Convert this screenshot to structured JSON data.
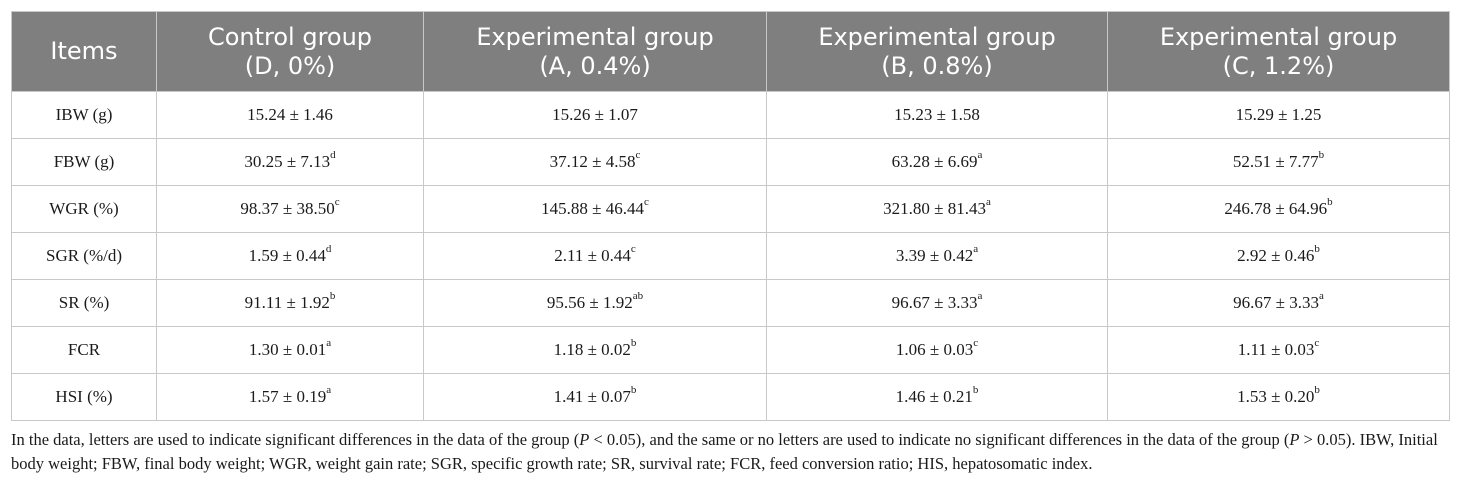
{
  "table": {
    "headers": [
      {
        "line1": "Items",
        "line2": ""
      },
      {
        "line1": "Control group",
        "line2": "(D, 0%)"
      },
      {
        "line1": "Experimental group",
        "line2": "(A, 0.4%)"
      },
      {
        "line1": "Experimental group",
        "line2": "(B, 0.8%)"
      },
      {
        "line1": "Experimental group",
        "line2": "(C, 1.2%)"
      }
    ],
    "rows": [
      {
        "item": "IBW (g)",
        "cells": [
          {
            "value": "15.24 ± 1.46",
            "sup": ""
          },
          {
            "value": "15.26 ± 1.07",
            "sup": ""
          },
          {
            "value": "15.23 ± 1.58",
            "sup": ""
          },
          {
            "value": "15.29 ± 1.25",
            "sup": ""
          }
        ]
      },
      {
        "item": "FBW (g)",
        "cells": [
          {
            "value": "30.25 ± 7.13",
            "sup": "d"
          },
          {
            "value": "37.12 ± 4.58",
            "sup": "c"
          },
          {
            "value": "63.28 ± 6.69",
            "sup": "a"
          },
          {
            "value": "52.51 ± 7.77",
            "sup": "b"
          }
        ]
      },
      {
        "item": "WGR (%)",
        "cells": [
          {
            "value": "98.37 ± 38.50",
            "sup": "c"
          },
          {
            "value": "145.88 ± 46.44",
            "sup": "c"
          },
          {
            "value": "321.80 ± 81.43",
            "sup": "a"
          },
          {
            "value": "246.78 ± 64.96",
            "sup": "b"
          }
        ]
      },
      {
        "item": "SGR (%/d)",
        "cells": [
          {
            "value": "1.59 ± 0.44",
            "sup": "d"
          },
          {
            "value": "2.11 ± 0.44",
            "sup": "c"
          },
          {
            "value": "3.39 ± 0.42",
            "sup": "a"
          },
          {
            "value": "2.92 ± 0.46",
            "sup": "b"
          }
        ]
      },
      {
        "item": "SR (%)",
        "cells": [
          {
            "value": "91.11 ± 1.92",
            "sup": "b"
          },
          {
            "value": "95.56 ± 1.92",
            "sup": "ab"
          },
          {
            "value": "96.67 ± 3.33",
            "sup": "a"
          },
          {
            "value": "96.67 ± 3.33",
            "sup": "a"
          }
        ]
      },
      {
        "item": "FCR",
        "cells": [
          {
            "value": "1.30 ± 0.01",
            "sup": "a"
          },
          {
            "value": "1.18 ± 0.02",
            "sup": "b"
          },
          {
            "value": "1.06 ± 0.03",
            "sup": "c"
          },
          {
            "value": "1.11 ± 0.03",
            "sup": "c"
          }
        ]
      },
      {
        "item": "HSI (%)",
        "cells": [
          {
            "value": "1.57 ± 0.19",
            "sup": "a"
          },
          {
            "value": "1.41 ± 0.07",
            "sup": "b"
          },
          {
            "value": "1.46 ± 0.21",
            "sup": "b"
          },
          {
            "value": "1.53 ± 0.20",
            "sup": "b"
          }
        ]
      }
    ]
  },
  "footnote": {
    "part1": "In the data, letters are used to indicate significant differences in the data of the group (",
    "p1": "P",
    "part2": " < 0.05), and the same or no letters are used to indicate no significant differences in the data of the group (",
    "p2": "P",
    "part3": " > 0.05). IBW, Initial body weight; FBW, final body weight; WGR, weight gain rate; SGR, specific growth rate; SR, survival rate; FCR, feed conversion ratio; HIS, hepatosomatic index."
  },
  "colors": {
    "header_bg": "#7f7f7f",
    "header_text": "#ffffff",
    "grid": "#c8c8c8"
  }
}
